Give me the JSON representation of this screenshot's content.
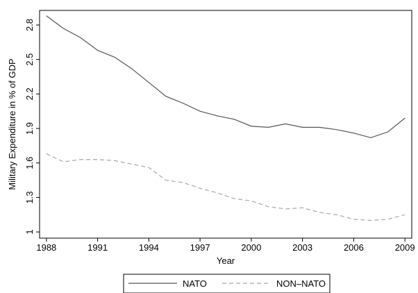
{
  "chart_data": {
    "type": "line",
    "xlabel": "Year",
    "ylabel": "Military Expenditure in % of GDP",
    "x": [
      1988,
      1989,
      1990,
      1991,
      1992,
      1993,
      1994,
      1995,
      1996,
      1997,
      1998,
      1999,
      2000,
      2001,
      2002,
      2003,
      2004,
      2005,
      2006,
      2007,
      2008,
      2009
    ],
    "series": [
      {
        "name": "NATO",
        "color": "#555555",
        "dash": false,
        "values": [
          2.88,
          2.77,
          2.69,
          2.58,
          2.52,
          2.42,
          2.3,
          2.18,
          2.12,
          2.05,
          2.01,
          1.98,
          1.92,
          1.91,
          1.94,
          1.91,
          1.91,
          1.89,
          1.86,
          1.82,
          1.87,
          1.99
        ]
      },
      {
        "name": "NON–NATO",
        "color": "#a8a8a8",
        "dash": true,
        "values": [
          1.68,
          1.61,
          1.63,
          1.63,
          1.62,
          1.59,
          1.56,
          1.45,
          1.43,
          1.38,
          1.34,
          1.29,
          1.27,
          1.22,
          1.2,
          1.21,
          1.17,
          1.15,
          1.11,
          1.1,
          1.11,
          1.15
        ]
      }
    ],
    "xlim": [
      1987.6,
      2009.4
    ],
    "xticks": [
      1988,
      1991,
      1994,
      1997,
      2000,
      2003,
      2006,
      2009
    ],
    "ylim": [
      0.946,
      2.927
    ],
    "yticks": [
      1,
      1.3,
      1.6,
      1.9,
      2.2,
      2.5,
      2.8
    ],
    "grid": false,
    "legend": "bottom"
  }
}
